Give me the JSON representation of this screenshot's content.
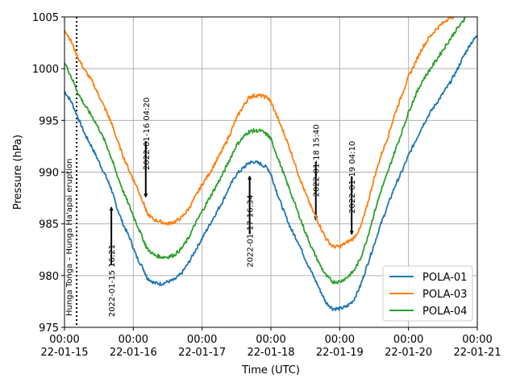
{
  "chart_data": {
    "type": "line",
    "title": "",
    "xlabel": "Time (UTC)",
    "ylabel": "Pressure (hPa)",
    "xlim_days": [
      0,
      6
    ],
    "ylim": [
      975,
      1005
    ],
    "grid": true,
    "x_unit": "days since 2022-01-15 00:00 UTC",
    "xticks": [
      {
        "value": 0,
        "line1": "00:00",
        "line2": "22-01-15"
      },
      {
        "value": 1,
        "line1": "00:00",
        "line2": "22-01-16"
      },
      {
        "value": 2,
        "line1": "00:00",
        "line2": "22-01-17"
      },
      {
        "value": 3,
        "line1": "00:00",
        "line2": "22-01-18"
      },
      {
        "value": 4,
        "line1": "00:00",
        "line2": "22-01-19"
      },
      {
        "value": 5,
        "line1": "00:00",
        "line2": "22-01-20"
      },
      {
        "value": 6,
        "line1": "00:00",
        "line2": "22-01-21"
      }
    ],
    "yticks": [
      {
        "value": 975,
        "label": "975"
      },
      {
        "value": 980,
        "label": "980"
      },
      {
        "value": 985,
        "label": "985"
      },
      {
        "value": 990,
        "label": "990"
      },
      {
        "value": 995,
        "label": "995"
      },
      {
        "value": 1000,
        "label": "1000"
      },
      {
        "value": 1005,
        "label": "1005"
      }
    ],
    "legend_position": "bottom-right",
    "series": [
      {
        "name": "POLA-01",
        "color": "#1f77b4",
        "x": [
          0,
          0.1,
          0.2,
          0.3,
          0.4,
          0.5,
          0.6,
          0.68,
          0.75,
          0.85,
          0.95,
          1.05,
          1.15,
          1.2,
          1.3,
          1.4,
          1.5,
          1.6,
          1.7,
          1.8,
          1.9,
          2.0,
          2.1,
          2.2,
          2.3,
          2.4,
          2.5,
          2.6,
          2.68,
          2.75,
          2.85,
          2.95,
          3.0,
          3.1,
          3.2,
          3.3,
          3.4,
          3.5,
          3.6,
          3.7,
          3.8,
          3.9,
          4.0,
          4.1,
          4.2,
          4.3,
          4.4,
          4.5,
          4.6,
          4.7,
          4.8,
          4.9,
          5.0,
          5.1,
          5.2,
          5.3,
          5.4,
          5.5,
          5.6,
          5.7,
          5.8,
          5.9,
          6.0
        ],
        "y": [
          997.8,
          996.8,
          995.2,
          993.6,
          992.4,
          991.0,
          989.6,
          988.4,
          986.8,
          985.0,
          983.6,
          981.8,
          980.6,
          979.8,
          979.3,
          979.2,
          979.4,
          979.6,
          980.2,
          981.2,
          982.4,
          983.6,
          984.8,
          986.0,
          987.2,
          988.6,
          989.8,
          990.4,
          990.9,
          991.0,
          990.8,
          990.4,
          989.8,
          987.8,
          986.0,
          984.4,
          983.2,
          981.6,
          980.2,
          978.8,
          977.4,
          976.8,
          976.8,
          977.0,
          977.6,
          979.0,
          981.0,
          983.0,
          985.0,
          986.8,
          988.6,
          990.0,
          991.6,
          993.0,
          994.4,
          995.6,
          996.6,
          997.6,
          998.6,
          999.8,
          1001.2,
          1002.4,
          1003.2
        ]
      },
      {
        "name": "POLA-03",
        "color": "#ff7f0e",
        "x": [
          0,
          0.1,
          0.2,
          0.3,
          0.4,
          0.5,
          0.6,
          0.68,
          0.75,
          0.85,
          0.95,
          1.05,
          1.15,
          1.2,
          1.3,
          1.4,
          1.5,
          1.6,
          1.7,
          1.8,
          1.9,
          2.0,
          2.1,
          2.2,
          2.3,
          2.4,
          2.5,
          2.6,
          2.68,
          2.75,
          2.85,
          2.95,
          3.0,
          3.1,
          3.2,
          3.3,
          3.4,
          3.5,
          3.6,
          3.7,
          3.8,
          3.9,
          4.0,
          4.1,
          4.2,
          4.3,
          4.4,
          4.5,
          4.6,
          4.7,
          4.8,
          4.9,
          5.0,
          5.1,
          5.2,
          5.3,
          5.4,
          5.5,
          5.6,
          5.65
        ],
        "y": [
          1003.8,
          1002.6,
          1001.0,
          999.8,
          998.8,
          997.4,
          996.0,
          994.8,
          993.4,
          991.6,
          990.0,
          988.6,
          987.0,
          986.0,
          985.4,
          985.2,
          985.0,
          985.2,
          985.6,
          986.4,
          987.6,
          988.8,
          989.8,
          991.0,
          992.2,
          993.6,
          995.2,
          996.4,
          997.2,
          997.4,
          997.4,
          997.2,
          996.8,
          995.2,
          993.6,
          991.8,
          989.8,
          988.0,
          986.4,
          985.0,
          983.6,
          982.8,
          982.8,
          983.2,
          983.6,
          984.6,
          986.8,
          989.4,
          991.6,
          993.4,
          995.6,
          997.4,
          999.2,
          1000.6,
          1002.0,
          1003.0,
          1003.8,
          1004.4,
          1005.0,
          1005.0
        ]
      },
      {
        "name": "POLA-04",
        "color": "#2ca02c",
        "x": [
          0,
          0.1,
          0.2,
          0.3,
          0.4,
          0.5,
          0.6,
          0.68,
          0.75,
          0.85,
          0.95,
          1.05,
          1.15,
          1.2,
          1.3,
          1.4,
          1.5,
          1.6,
          1.7,
          1.8,
          1.9,
          2.0,
          2.1,
          2.2,
          2.3,
          2.4,
          2.5,
          2.6,
          2.68,
          2.75,
          2.85,
          2.95,
          3.0,
          3.1,
          3.2,
          3.3,
          3.4,
          3.5,
          3.6,
          3.7,
          3.8,
          3.9,
          4.0,
          4.1,
          4.2,
          4.3,
          4.4,
          4.5,
          4.6,
          4.7,
          4.8,
          4.9,
          5.0,
          5.1,
          5.2,
          5.3,
          5.4,
          5.5,
          5.6,
          5.7,
          5.8,
          5.82
        ],
        "y": [
          1000.6,
          999.2,
          997.6,
          996.4,
          995.4,
          994.2,
          992.8,
          991.4,
          990.0,
          988.2,
          986.6,
          985.0,
          983.4,
          982.6,
          982.0,
          981.8,
          981.8,
          982.0,
          982.6,
          983.6,
          985.0,
          986.2,
          987.4,
          988.6,
          989.8,
          991.2,
          992.6,
          993.4,
          993.9,
          994.0,
          994.0,
          993.6,
          993.2,
          991.4,
          989.6,
          987.8,
          986.0,
          984.2,
          982.6,
          981.2,
          980.0,
          979.4,
          979.4,
          979.8,
          980.4,
          981.6,
          983.6,
          986.0,
          988.2,
          990.0,
          992.0,
          993.8,
          995.8,
          997.4,
          998.8,
          999.8,
          1000.8,
          1001.8,
          1002.8,
          1003.8,
          1004.6,
          1005.0
        ]
      }
    ],
    "annotations": [
      {
        "text": "Hunga Tonga – Hunga Ha'apai eruption",
        "x": 0.176,
        "kind": "vertical-dotted-line"
      },
      {
        "text": "2022-01-15 16:21",
        "x": 0.681,
        "arrow_from": 981.0,
        "arrow_to": 986.6,
        "direction": "up",
        "text_from": 976,
        "text_to": 981.5
      },
      {
        "text": "2022-01-16 04:20",
        "x": 1.181,
        "arrow_from": 993.0,
        "arrow_to": 987.6,
        "direction": "down",
        "text_from": 990.2,
        "text_to": 996.8
      },
      {
        "text": "2022-01-17 16:34",
        "x": 2.691,
        "arrow_from": 984.0,
        "arrow_to": 989.6,
        "direction": "up",
        "text_from": 980.8,
        "text_to": 987.7
      },
      {
        "text": "2022-01-18 15:40",
        "x": 3.653,
        "arrow_from": 991.0,
        "arrow_to": 985.4,
        "direction": "down",
        "text_from": 987.6,
        "text_to": 994.4
      },
      {
        "text": "2022-01-19 04:10",
        "x": 4.174,
        "arrow_from": 989.6,
        "arrow_to": 984.0,
        "direction": "down",
        "text_from": 986.0,
        "text_to": 992.8
      }
    ]
  }
}
